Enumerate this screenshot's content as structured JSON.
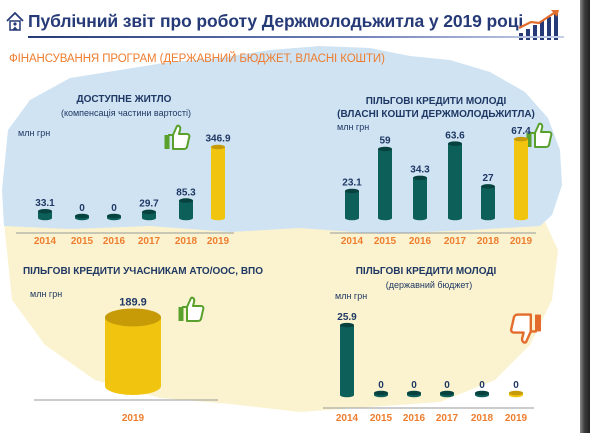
{
  "header": {
    "title": "Публічний звіт про роботу Держмолодьжитла  у 2019 році",
    "subtitle": "ФІНАНСУВАННЯ ПРОГРАМ (ДЕРЖАВНИЙ БЮДЖЕТ, ВЛАСНІ КОШТИ)"
  },
  "icons": {
    "logo": "house-logo-icon",
    "growth": "growth-chart-icon",
    "thumbs_up": "thumbs-up-icon",
    "thumbs_down": "thumbs-down-icon"
  },
  "colors": {
    "title": "#263a78",
    "subtitle": "#ee7d2f",
    "bar_teal": "#0d5f5a",
    "bar_gold": "#f1c40f",
    "axis_label": "#ee7d2f",
    "value_label": "#1f3864",
    "thumb_green": "#5aa02c",
    "thumb_orange": "#e36c2c",
    "map_blue": "#cfe3f3",
    "map_yellow": "#fbf3cf"
  },
  "panels": {
    "affordable": {
      "title": "ДОСТУПНЕ ЖИТЛО",
      "note": "(компенсація частини вартості)",
      "unit": "млн грн"
    },
    "youth_own": {
      "title": "ПІЛЬГОВІ КРЕДИТИ МОЛОДІ",
      "title2": "(ВЛАСНІ КОШТИ ДЕРЖМОЛОДЬЖИТЛА)",
      "unit": "млн грн"
    },
    "ato": {
      "title": "ПІЛЬГОВІ КРЕДИТИ УЧАСНИКАМ АТО/ООС, ВПО",
      "unit": "млн грн"
    },
    "youth_state": {
      "title": "ПІЛЬГОВІ КРЕДИТИ МОЛОДІ",
      "note": "(державний бюджет)",
      "unit": "млн грн"
    }
  },
  "chart_data": [
    {
      "type": "bar",
      "title": "ДОСТУПНЕ ЖИТЛО",
      "ylabel": "млн грн",
      "categories": [
        "2014",
        "2015",
        "2016",
        "2017",
        "2018",
        "2019"
      ],
      "values": [
        33.1,
        0,
        0,
        29.7,
        85.3,
        346.9
      ],
      "value_labels": [
        "33.1",
        "0",
        "0",
        "29.7",
        "85.3",
        "346.9"
      ],
      "highlight": [
        false,
        false,
        false,
        false,
        false,
        true
      ],
      "legend": "none"
    },
    {
      "type": "bar",
      "title": "ПІЛЬГОВІ КРЕДИТИ МОЛОДІ (ВЛАСНІ КОШТИ ДЕРЖМОЛОДЬЖИТЛА)",
      "ylabel": "млн грн",
      "categories": [
        "2014",
        "2015",
        "2016",
        "2017",
        "2018",
        "2019"
      ],
      "values": [
        23.1,
        59,
        34.3,
        63.6,
        27,
        67.4
      ],
      "value_labels": [
        "23.1",
        "59",
        "34.3",
        "63.6",
        "27",
        "67.4"
      ],
      "highlight": [
        false,
        false,
        false,
        false,
        false,
        true
      ],
      "legend": "none"
    },
    {
      "type": "bar",
      "title": "ПІЛЬГОВІ КРЕДИТИ УЧАСНИКАМ АТО/ООС, ВПО",
      "ylabel": "млн грн",
      "categories": [
        "2019"
      ],
      "values": [
        189.9
      ],
      "value_labels": [
        "189.9"
      ],
      "highlight": [
        true
      ],
      "legend": "none"
    },
    {
      "type": "bar",
      "title": "ПІЛЬГОВІ КРЕДИТИ МОЛОДІ (державний бюджет)",
      "ylabel": "млн грн",
      "categories": [
        "2014",
        "2015",
        "2016",
        "2017",
        "2018",
        "2019"
      ],
      "values": [
        25.9,
        0,
        0,
        0,
        0,
        0
      ],
      "value_labels": [
        "25.9",
        "0",
        "0",
        "0",
        "0",
        "0"
      ],
      "highlight": [
        false,
        false,
        false,
        false,
        false,
        true
      ],
      "legend": "none"
    }
  ]
}
